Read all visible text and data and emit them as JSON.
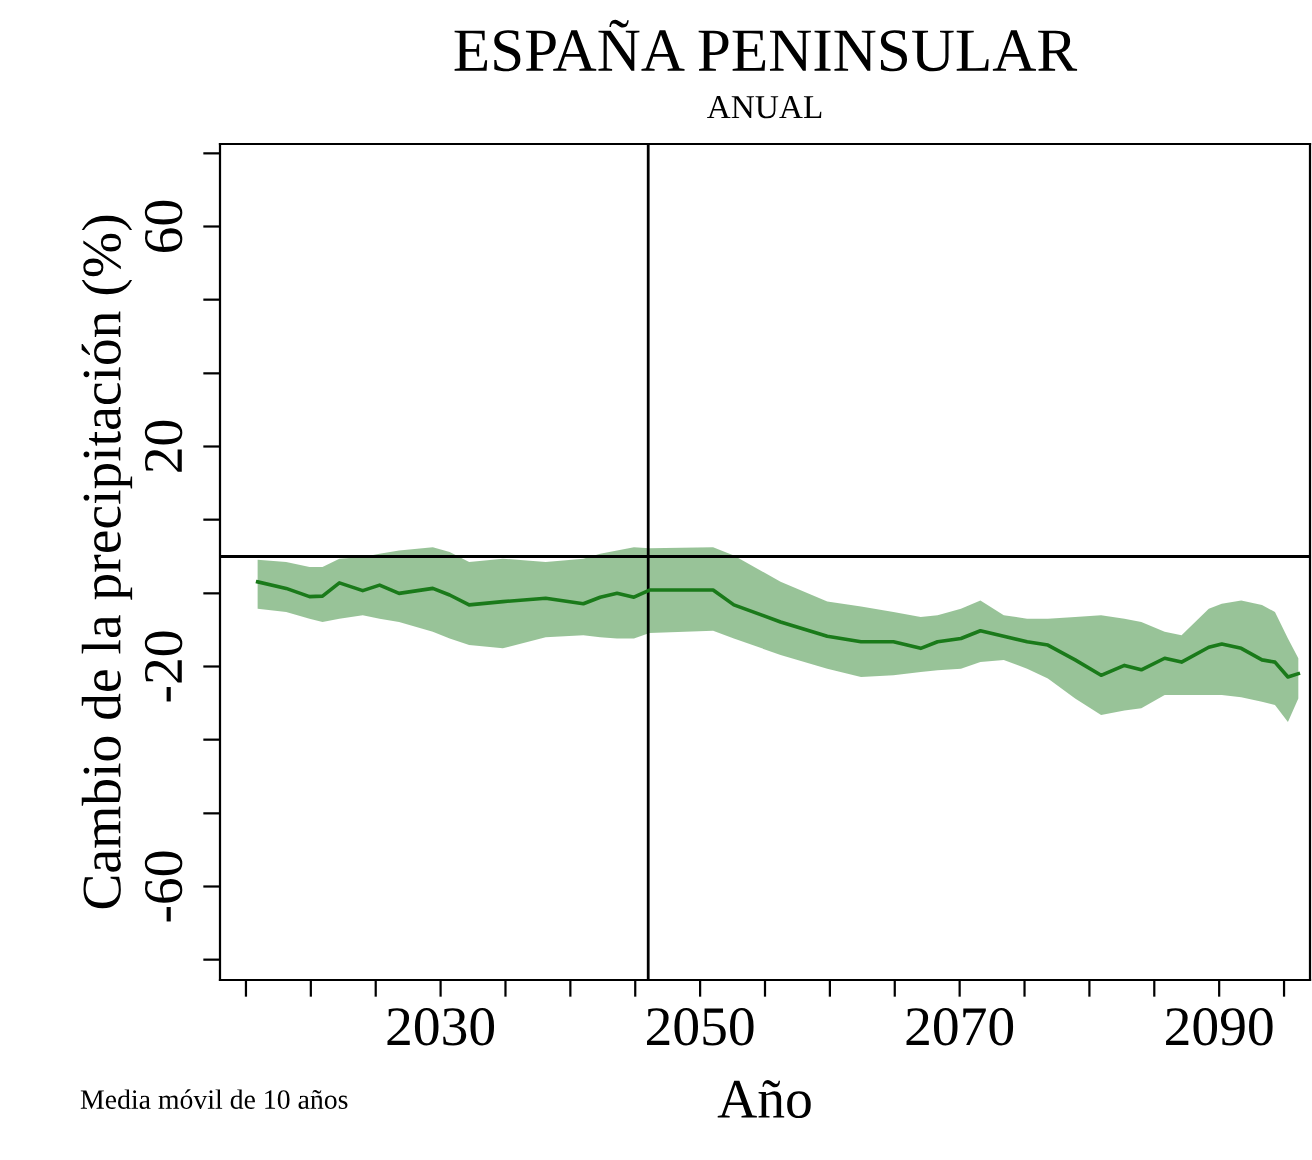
{
  "chart_data": {
    "type": "line",
    "title": "ESPAÑA PENINSULAR",
    "subtitle": "ANUAL",
    "xlabel": "Año",
    "ylabel": "Cambio de la precipitación (%)",
    "annotations": [
      "Media móvil de 10 años"
    ],
    "xlim": [
      2013,
      2097
    ],
    "ylim": [
      -77,
      75
    ],
    "xticks": [
      {
        "value": 2015,
        "label": null
      },
      {
        "value": 2020,
        "label": null
      },
      {
        "value": 2025,
        "label": null
      },
      2030,
      {
        "value": 2035,
        "label": null
      },
      {
        "value": 2040,
        "label": null
      },
      {
        "value": 2045,
        "label": null
      },
      2050,
      {
        "value": 2055,
        "label": null
      },
      {
        "value": 2060,
        "label": null
      },
      {
        "value": 2065,
        "label": null
      },
      2070,
      {
        "value": 2075,
        "label": null
      },
      {
        "value": 2080,
        "label": null
      },
      {
        "value": 2085,
        "label": null
      },
      2090,
      {
        "value": 2095,
        "label": null
      }
    ],
    "yticks": [
      {
        "value": -73.3,
        "label": null
      },
      -60,
      {
        "value": -46.7,
        "label": null
      },
      {
        "value": -33.3,
        "label": null
      },
      -20,
      {
        "value": -6.7,
        "label": null
      },
      {
        "value": 6.7,
        "label": null
      },
      20,
      {
        "value": 33.3,
        "label": null
      },
      {
        "value": 46.7,
        "label": null
      },
      60,
      {
        "value": 73.3,
        "label": null
      }
    ],
    "grid": false,
    "legend": false,
    "marker": "none",
    "line_style": "solid",
    "ref_lines": [
      {
        "axis": "y",
        "value": 0,
        "label": null,
        "color": "#000000"
      },
      {
        "axis": "x",
        "value": 2046,
        "label": null,
        "color": "#000000"
      }
    ],
    "series": [
      {
        "color": "#1a7a1a",
        "x": [
          2015.9,
          2018.1,
          2019.9,
          2020.9,
          2022.2,
          2024.0,
          2025.3,
          2026.8,
          2029.4,
          2030.7,
          2032.2,
          2034.8,
          2038.1,
          2041.0,
          2042.3,
          2043.6,
          2044.9,
          2046.1,
          2051.0,
          2052.6,
          2056.2,
          2059.8,
          2062.4,
          2064.9,
          2067.0,
          2068.3,
          2070.1,
          2071.6,
          2073.4,
          2075.2,
          2076.8,
          2078.9,
          2080.9,
          2082.7,
          2084.0,
          2085.8,
          2087.1,
          2089.2,
          2090.2,
          2091.7,
          2093.3,
          2094.3,
          2095.3,
          2096.1
        ],
        "values": [
          -4.6,
          -5.8,
          -7.3,
          -7.2,
          -4.8,
          -6.2,
          -5.2,
          -6.7,
          -5.8,
          -7.0,
          -8.8,
          -8.2,
          -7.6,
          -8.6,
          -7.4,
          -6.7,
          -7.4,
          -6.1,
          -6.1,
          -8.8,
          -11.9,
          -14.5,
          -15.5,
          -15.5,
          -16.7,
          -15.5,
          -14.9,
          -13.5,
          -14.5,
          -15.5,
          -16.1,
          -18.8,
          -21.6,
          -19.8,
          -20.6,
          -18.5,
          -19.2,
          -16.5,
          -15.9,
          -16.7,
          -18.8,
          -19.2,
          -21.9,
          -21.3
        ],
        "upper": [
          -0.6,
          -1.0,
          -1.9,
          -1.9,
          -0.4,
          -0.1,
          0.5,
          1.1,
          1.7,
          0.8,
          -1.0,
          -0.4,
          -1.0,
          -0.4,
          0.5,
          1.1,
          1.7,
          1.5,
          1.7,
          0.2,
          -4.6,
          -8.2,
          -9.1,
          -10.1,
          -11.0,
          -10.7,
          -9.5,
          -8.0,
          -10.7,
          -11.3,
          -11.3,
          -11.0,
          -10.7,
          -11.3,
          -11.9,
          -13.7,
          -14.3,
          -9.5,
          -8.6,
          -8.0,
          -8.8,
          -10.1,
          -14.9,
          -18.5
        ],
        "lower": [
          -9.5,
          -10.1,
          -11.3,
          -11.9,
          -11.3,
          -10.7,
          -11.3,
          -11.9,
          -13.7,
          -14.9,
          -16.1,
          -16.7,
          -14.7,
          -14.3,
          -14.7,
          -14.9,
          -14.9,
          -13.9,
          -13.5,
          -14.9,
          -17.9,
          -20.4,
          -21.9,
          -21.6,
          -21.0,
          -20.7,
          -20.4,
          -19.2,
          -18.8,
          -20.4,
          -22.2,
          -25.8,
          -28.8,
          -28.0,
          -27.6,
          -25.2,
          -25.2,
          -25.2,
          -25.2,
          -25.6,
          -26.4,
          -27.0,
          -30.1,
          -25.8
        ]
      }
    ]
  }
}
